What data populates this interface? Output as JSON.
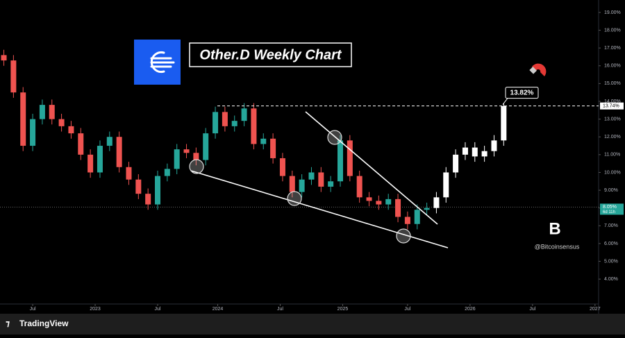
{
  "chart_data": {
    "type": "candlestick",
    "title": "Other.D Weekly Chart",
    "watermark": "@Bitcoinsensus",
    "brand": "TradingView",
    "xlim": [
      -13.6,
      235.5
    ],
    "xticks": [
      {
        "value": 0,
        "label": "Jul"
      },
      {
        "value": 26,
        "label": "2023"
      },
      {
        "value": 52,
        "label": "Jul"
      },
      {
        "value": 77,
        "label": "2024"
      },
      {
        "value": 103,
        "label": "Jul"
      },
      {
        "value": 129,
        "label": "2025"
      },
      {
        "value": 156,
        "label": "Jul"
      },
      {
        "value": 182,
        "label": "2026"
      },
      {
        "value": 208,
        "label": "Jul"
      },
      {
        "value": 234,
        "label": "2027"
      }
    ],
    "ylim": [
      2.6,
      19.7
    ],
    "yticks": [
      {
        "value": 4,
        "label": "4.00%"
      },
      {
        "value": 5,
        "label": "5.00%"
      },
      {
        "value": 6,
        "label": "6.00%"
      },
      {
        "value": 7,
        "label": "7.00%"
      },
      {
        "value": 8,
        "label": "8.00%"
      },
      {
        "value": 9,
        "label": "9.00%"
      },
      {
        "value": 10,
        "label": "10.00%"
      },
      {
        "value": 11,
        "label": "11.00%"
      },
      {
        "value": 12,
        "label": "12.00%"
      },
      {
        "value": 13,
        "label": "13.00%"
      },
      {
        "value": 14,
        "label": "14.00%"
      },
      {
        "value": 15,
        "label": "15.00%"
      },
      {
        "value": 16,
        "label": "16.00%"
      },
      {
        "value": 17,
        "label": "17.00%"
      },
      {
        "value": 18,
        "label": "18.00%"
      },
      {
        "value": 19,
        "label": "19.00%"
      }
    ],
    "series": [
      {
        "color_up": "#26a69a",
        "color_down": "#ef5350",
        "x": [
          -12,
          -8,
          -4,
          0,
          4,
          8,
          12,
          16,
          20,
          24,
          28,
          32,
          36,
          40,
          44,
          48,
          52,
          56,
          60,
          64,
          68,
          72,
          76,
          80,
          84,
          88,
          92,
          96,
          100,
          104,
          108,
          112,
          116,
          120,
          124,
          128,
          132,
          136,
          140,
          144,
          148,
          152,
          156,
          160,
          164
        ],
        "open": [
          16.6,
          16.3,
          14.5,
          11.5,
          13.0,
          13.8,
          13.0,
          12.6,
          12.2,
          11.0,
          10.0,
          11.5,
          12.0,
          10.3,
          9.6,
          8.8,
          8.2,
          9.8,
          10.2,
          11.3,
          11.1,
          10.7,
          12.2,
          13.4,
          12.6,
          12.9,
          13.6,
          11.6,
          11.9,
          10.8,
          9.8,
          8.9,
          9.6,
          10.0,
          9.2,
          9.5,
          11.8,
          9.8,
          8.6,
          8.4,
          8.2,
          8.5,
          7.5,
          7.1,
          7.9
        ],
        "high": [
          16.9,
          16.6,
          14.8,
          13.3,
          14.1,
          14.1,
          13.3,
          12.9,
          12.5,
          11.3,
          11.8,
          12.3,
          12.3,
          10.6,
          9.9,
          9.1,
          10.1,
          10.5,
          11.6,
          11.6,
          11.4,
          12.5,
          13.7,
          13.7,
          13.2,
          13.9,
          13.9,
          12.2,
          12.2,
          11.1,
          10.1,
          9.9,
          10.3,
          10.3,
          9.8,
          12.1,
          12.1,
          10.1,
          8.9,
          8.7,
          8.8,
          8.8,
          7.8,
          8.2,
          8.3
        ],
        "low": [
          16.0,
          14.2,
          11.2,
          11.2,
          12.7,
          12.7,
          12.3,
          11.9,
          10.7,
          9.7,
          9.7,
          11.2,
          10.0,
          9.3,
          8.5,
          7.9,
          7.9,
          9.5,
          9.9,
          10.8,
          10.4,
          10.4,
          11.9,
          12.3,
          12.3,
          12.6,
          11.3,
          11.3,
          10.5,
          9.5,
          8.6,
          8.6,
          9.3,
          8.9,
          8.9,
          9.2,
          9.5,
          8.3,
          8.1,
          7.9,
          7.9,
          7.2,
          6.8,
          6.8,
          7.6
        ],
        "close": [
          16.3,
          14.5,
          11.5,
          13.0,
          13.8,
          13.0,
          12.6,
          12.2,
          11.0,
          10.0,
          11.5,
          12.0,
          10.3,
          9.6,
          8.8,
          8.2,
          9.8,
          10.2,
          11.3,
          11.1,
          10.7,
          12.2,
          13.4,
          12.6,
          12.9,
          13.6,
          11.6,
          11.9,
          10.8,
          9.8,
          8.9,
          9.6,
          10.0,
          9.2,
          9.5,
          11.8,
          9.8,
          8.6,
          8.4,
          8.2,
          8.5,
          7.5,
          7.1,
          7.9,
          8.0
        ]
      },
      {
        "color_up": "#ffffff",
        "color_down": "#ffffff",
        "x": [
          168,
          172,
          176,
          180,
          184,
          188,
          192,
          196
        ],
        "open": [
          8.0,
          8.6,
          10.0,
          11.0,
          11.4,
          10.9,
          11.2,
          11.8
        ],
        "high": [
          8.9,
          10.3,
          11.3,
          11.7,
          11.7,
          11.5,
          12.1,
          13.9
        ],
        "low": [
          7.7,
          8.3,
          9.7,
          10.7,
          10.6,
          10.6,
          10.9,
          11.5
        ],
        "close": [
          8.6,
          10.0,
          11.0,
          11.4,
          10.9,
          11.2,
          11.8,
          13.74
        ]
      }
    ],
    "current_price": {
      "value": 8.05,
      "label": "8.05%"
    },
    "countdown": "6d 11h",
    "resistance": {
      "value": 13.74,
      "label": "13.74%"
    },
    "target": {
      "value": 13.82,
      "label": "13.82%"
    }
  }
}
